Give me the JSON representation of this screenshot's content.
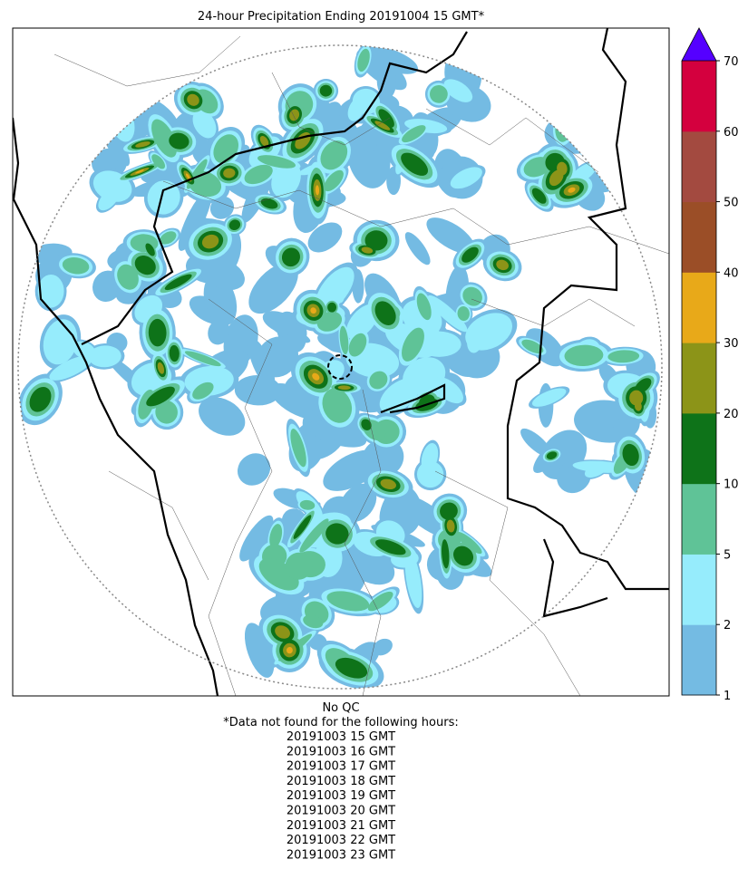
{
  "title": "24-hour Precipitation Ending 20191004 15 GMT*",
  "colorbar": {
    "ticks": [
      1,
      2,
      5,
      10,
      20,
      30,
      40,
      50,
      60,
      70
    ],
    "colors": [
      "#74bbe3",
      "#96ecfc",
      "#5fc397",
      "#0e7319",
      "#8c9418",
      "#e8a919",
      "#9b4e27",
      "#a34a40",
      "#d4003e"
    ],
    "extend_color": "#5500ff"
  },
  "footer": {
    "qc": "No QC",
    "note": "*Data not found for the following hours:",
    "missing_hours": [
      "20191003 15 GMT",
      "20191003 16 GMT",
      "20191003 17 GMT",
      "20191003 18 GMT",
      "20191003 19 GMT",
      "20191003 20 GMT",
      "20191003 21 GMT",
      "20191003 22 GMT",
      "20191003 23 GMT"
    ]
  }
}
